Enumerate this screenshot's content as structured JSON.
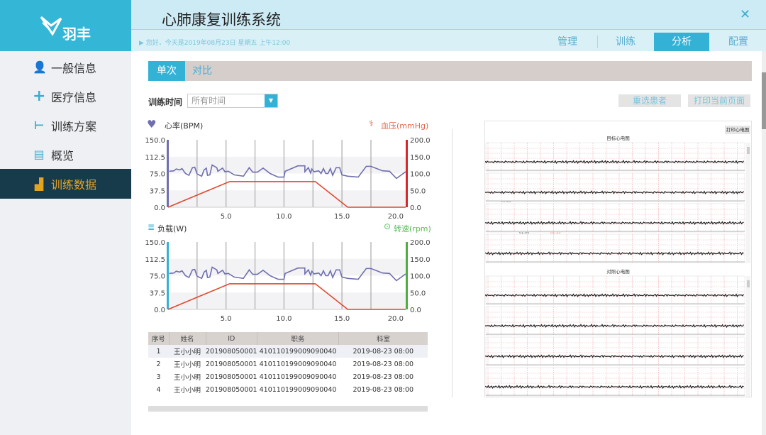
{
  "app": {
    "logo_text": "羽丰",
    "title": "心肺康复训练系统",
    "greeting": "▶ 您好，今天是2019年08月23日  星期五  上午12:00",
    "close_icon": "close-icon"
  },
  "nav": [
    {
      "label": "管理",
      "active": false
    },
    {
      "label": "训练",
      "active": false
    },
    {
      "label": "分析",
      "active": true
    },
    {
      "label": "配置",
      "active": false
    }
  ],
  "sidebar": {
    "items": [
      {
        "label": "一般信息",
        "icon": "user-icon"
      },
      {
        "label": "医疗信息",
        "icon": "plus-icon"
      },
      {
        "label": "训练方案",
        "icon": "plan-icon"
      },
      {
        "label": "概览",
        "icon": "document-icon"
      },
      {
        "label": "训练数据",
        "icon": "bar-chart-icon",
        "active": true
      }
    ]
  },
  "tabs": [
    {
      "label": "单次",
      "active": true
    },
    {
      "label": "对比",
      "active": false
    }
  ],
  "filter": {
    "label": "训练时间",
    "value": "所有时间"
  },
  "buttons": {
    "reselect": "重选患者",
    "print_page": "打印当前页面",
    "print_ecg": "打印心电图"
  },
  "colors": {
    "accent": "#34b2d6",
    "sidebar_active": "#173b4b",
    "active_text": "#e5a324",
    "hr_line": "#6f6fb0",
    "bp_line": "#e0472c"
  },
  "chart_data": [
    {
      "type": "line",
      "left_label": "心率(BPM)",
      "right_label": "血压(mmHg)",
      "left_ylim": [
        0,
        150
      ],
      "right_ylim": [
        0,
        200
      ],
      "left_ticks": [
        "0.0",
        "37.5",
        "75.0",
        "112.5",
        "150.0"
      ],
      "right_ticks": [
        "0.0",
        "50.0",
        "100.0",
        "150.0",
        "200.0"
      ],
      "xlim": [
        0,
        20.5
      ],
      "x_ticks": [
        "5.0",
        "10.0",
        "15.0",
        "20.0"
      ],
      "grid": true,
      "series": [
        {
          "name": "心率(BPM)",
          "axis": "left",
          "x": [
            0.1,
            0.5,
            0.7,
            1.0,
            1.2,
            1.5,
            1.8,
            2.1,
            2.3,
            2.5,
            2.9,
            3.1,
            3.3,
            3.4,
            3.6,
            3.8,
            4.2,
            4.3,
            4.7,
            4.9,
            5.2,
            5.7,
            6.5,
            7.0,
            7.3,
            7.7,
            8.2,
            8.8,
            9.5,
            10.0,
            10.1,
            11.2,
            11.8,
            11.8,
            12.1,
            12.3,
            12.4,
            12.6,
            13.0,
            13.2,
            13.4,
            13.6,
            13.8,
            14.0,
            14.2,
            14.5,
            14.8,
            15.0,
            15.5,
            16.4,
            17.1,
            17.5,
            18.5,
            19.1,
            19.7,
            20.5
          ],
          "y": [
            80,
            81,
            85,
            83,
            86,
            75,
            71,
            88,
            89,
            74,
            69,
            83,
            87,
            71,
            72,
            94,
            88,
            80,
            87,
            79,
            80,
            72,
            69,
            88,
            78,
            78,
            87,
            75,
            67,
            67,
            80,
            92,
            92,
            79,
            88,
            76,
            85,
            79,
            81,
            75,
            86,
            75,
            75,
            86,
            71,
            88,
            88,
            72,
            69,
            67,
            91,
            91,
            81,
            80,
            64,
            79
          ]
        },
        {
          "name": "血压(mmHg)",
          "axis": "right",
          "x": [
            0,
            5.3,
            12.7,
            15.5,
            20.5
          ],
          "y": [
            0,
            76,
            76,
            0,
            0
          ]
        }
      ]
    },
    {
      "type": "line",
      "left_label": "负载(W)",
      "right_label": "转速(rpm)",
      "left_ylim": [
        0,
        150
      ],
      "right_ylim": [
        0,
        200
      ],
      "left_ticks": [
        "0.0",
        "37.5",
        "75.0",
        "112.5",
        "150.0"
      ],
      "right_ticks": [
        "0.0",
        "50.0",
        "100.0",
        "150.0",
        "200.0"
      ],
      "xlim": [
        0,
        20.5
      ],
      "x_ticks": [
        "5.0",
        "10.0",
        "15.0",
        "20.0"
      ],
      "grid": true,
      "series": [
        {
          "name": "负载(W)",
          "axis": "left",
          "x": [
            0.1,
            0.5,
            0.7,
            1.0,
            1.2,
            1.5,
            1.8,
            2.1,
            2.3,
            2.5,
            2.9,
            3.1,
            3.3,
            3.4,
            3.6,
            3.8,
            4.2,
            4.3,
            4.7,
            4.9,
            5.2,
            5.7,
            6.5,
            7.0,
            7.3,
            7.7,
            8.2,
            8.8,
            9.5,
            10.0,
            10.1,
            11.2,
            11.8,
            11.8,
            12.1,
            12.3,
            12.4,
            12.6,
            13.0,
            13.2,
            13.4,
            13.6,
            13.8,
            14.0,
            14.2,
            14.5,
            14.8,
            15.0,
            15.5,
            16.4,
            17.1,
            17.5,
            18.5,
            19.1,
            19.7,
            20.5
          ],
          "y": [
            80,
            81,
            85,
            83,
            86,
            75,
            71,
            88,
            89,
            74,
            69,
            83,
            87,
            71,
            72,
            94,
            88,
            80,
            87,
            79,
            80,
            72,
            69,
            88,
            78,
            78,
            87,
            75,
            67,
            67,
            80,
            92,
            92,
            79,
            88,
            76,
            85,
            79,
            81,
            75,
            86,
            75,
            75,
            86,
            71,
            88,
            88,
            72,
            69,
            67,
            91,
            91,
            81,
            80,
            64,
            79
          ]
        },
        {
          "name": "转速(rpm)",
          "axis": "right",
          "x": [
            0,
            5.3,
            12.7,
            15.5,
            20.5
          ],
          "y": [
            0,
            76,
            76,
            0,
            0
          ]
        }
      ]
    }
  ],
  "table": {
    "headers": [
      "序号",
      "姓名",
      "ID",
      "职务",
      "科室"
    ],
    "rows": [
      [
        "1",
        "王小小明",
        "201908050001",
        "410110199009090040",
        "2019-08-23  08:00"
      ],
      [
        "2",
        "王小小明",
        "201908050001",
        "410110199009090040",
        "2019-08-23  08:00"
      ],
      [
        "3",
        "王小小明",
        "201908050001",
        "410110199009090040",
        "2019-08-23  08:00"
      ],
      [
        "4",
        "王小小明",
        "201908050001",
        "410110199009090040",
        "2019-08-23  08:00"
      ]
    ]
  },
  "ecg": {
    "target_title": "目标心电图",
    "control_title": "对照心电图",
    "time_labels": [
      "00:30",
      "01:00",
      "01:15"
    ]
  }
}
